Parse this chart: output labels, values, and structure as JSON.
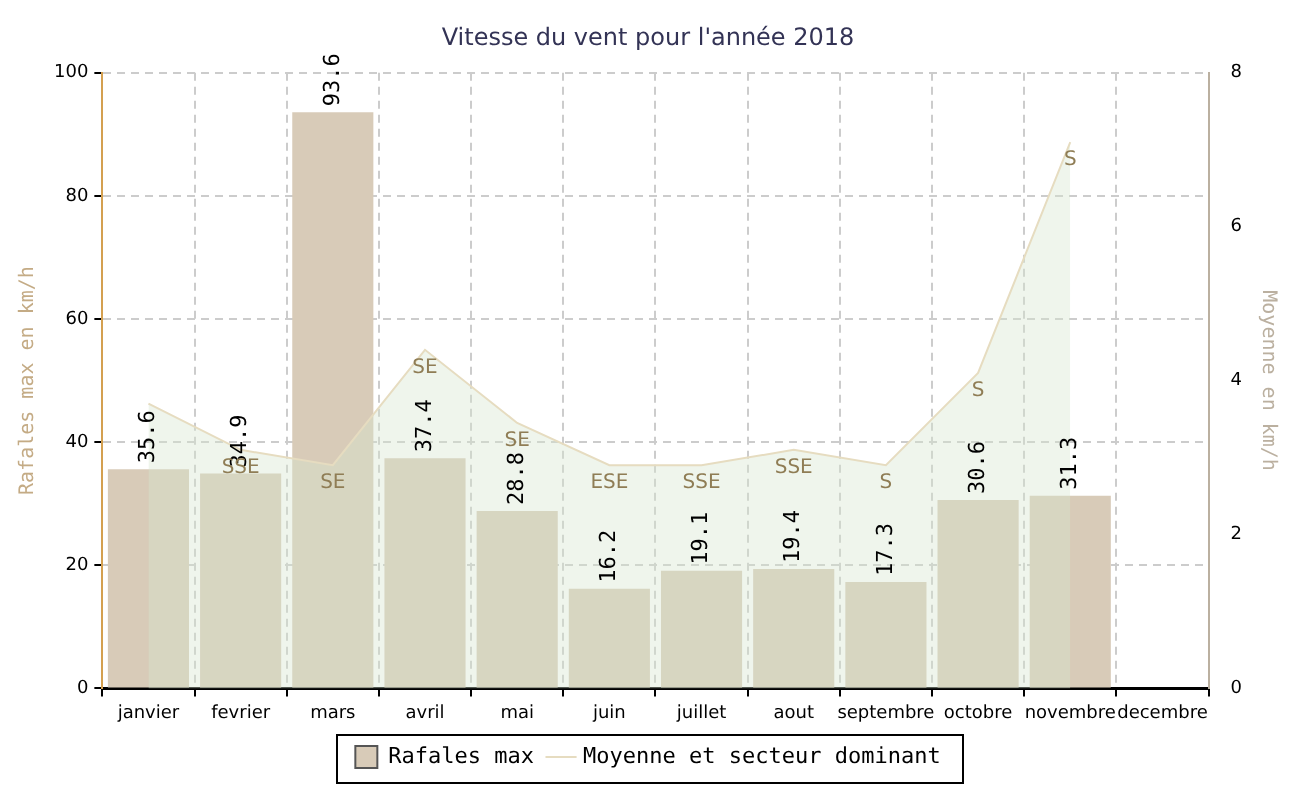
{
  "chart_data": {
    "type": "bar",
    "title": "Vitesse du vent pour l'année 2018",
    "ylabel": "Rafales max en km/h",
    "y2label": "Moyenne en km/h",
    "categories": [
      "janvier",
      "fevrier",
      "mars",
      "avril",
      "mai",
      "juin",
      "juillet",
      "aout",
      "septembre",
      "octobre",
      "novembre",
      "decembre"
    ],
    "series": [
      {
        "name": "Rafales max",
        "color": "#d8cbb8",
        "values": [
          35.6,
          34.9,
          93.6,
          37.4,
          28.8,
          16.2,
          19.1,
          19.4,
          17.3,
          30.6,
          31.3,
          null
        ],
        "value_labels": [
          "35.6",
          "34.9",
          "93.6",
          "37.4",
          "28.8",
          "16.2",
          "19.1",
          "19.4",
          "17.3",
          "30.6",
          "31.3",
          null
        ]
      },
      {
        "name": "Moyenne et secteur dominant",
        "type": "area",
        "axis": "y2",
        "color": "#e6dcc0",
        "values": [
          3.7,
          3.1,
          2.9,
          4.4,
          3.45,
          2.9,
          2.9,
          3.1,
          2.9,
          4.1,
          7.1,
          null
        ],
        "value_labels": [
          null,
          "SSE",
          "SE",
          "SE",
          "SE",
          "ESE",
          "SSE",
          "SSE",
          "S",
          "S",
          "S",
          null
        ]
      }
    ],
    "ylim": [
      0,
      100
    ],
    "yticks": [
      0,
      20,
      40,
      60,
      80,
      100
    ],
    "y2lim": [
      0,
      8
    ],
    "y2ticks": [
      0,
      2,
      4,
      6,
      8
    ],
    "grid": true,
    "legend": "bottom",
    "marker": "none"
  }
}
